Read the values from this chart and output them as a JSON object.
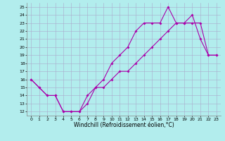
{
  "xlabel": "Windchill (Refroidissement éolien,°C)",
  "hours": [
    0,
    1,
    2,
    3,
    4,
    5,
    6,
    7,
    8,
    9,
    10,
    11,
    12,
    13,
    14,
    15,
    16,
    17,
    18,
    19,
    20,
    21,
    22,
    23
  ],
  "temp": [
    16,
    15,
    14,
    14,
    12,
    12,
    12,
    14,
    15,
    16,
    18,
    19,
    20,
    22,
    23,
    23,
    23,
    25,
    23,
    23,
    24,
    21,
    19,
    19
  ],
  "windchill": [
    16,
    15,
    14,
    14,
    12,
    12,
    12,
    13,
    15,
    15,
    16,
    17,
    17,
    18,
    19,
    20,
    21,
    22,
    23,
    23,
    23,
    23,
    19,
    19
  ],
  "line_color": "#aa00aa",
  "marker": "D",
  "markersize": 2,
  "linewidth": 0.8,
  "bg_color": "#b2eded",
  "grid_color": "#aaaacc",
  "ylim": [
    11.5,
    25.5
  ],
  "yticks": [
    12,
    13,
    14,
    15,
    16,
    17,
    18,
    19,
    20,
    21,
    22,
    23,
    24,
    25
  ],
  "xticks": [
    0,
    1,
    2,
    3,
    4,
    5,
    6,
    7,
    8,
    9,
    10,
    11,
    12,
    13,
    14,
    15,
    16,
    17,
    18,
    19,
    20,
    21,
    22,
    23
  ],
  "tick_fontsize": 4.5,
  "label_fontsize": 5.5,
  "fig_bg": "#b2eded"
}
